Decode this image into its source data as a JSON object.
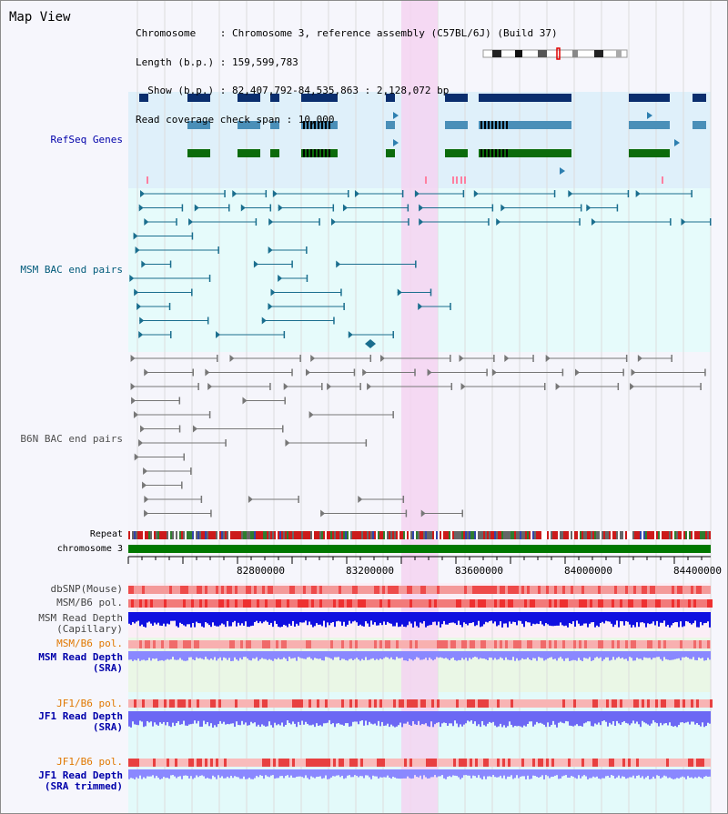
{
  "view": {
    "title": "Map View",
    "info": {
      "chromosome_line": "Chromosome    : Chromosome 3, reference assembly (C57BL/6J) (Build 37)",
      "length_line": "Length (b.p.) : 159,599,783",
      "show_line": "  Show (b.p.) : 82,407,792-84,535,863 : 2,128,072 bp",
      "span_line": "Read coverage check span : 10,000"
    }
  },
  "tracks": {
    "refseq": "RefSeq Genes",
    "msm_bac": "MSM BAC end pairs",
    "b6n_bac": "B6N BAC end pairs",
    "repeat": "Repeat",
    "chromosome": "chromosome 3",
    "dbsnp": "dbSNP(Mouse)",
    "msm_b6_pol": "MSM/B6 pol.",
    "msm_depth_cap_1": "MSM Read Depth",
    "msm_depth_cap_2": "(Capillary)",
    "msm_b6_pol_sra": "MSM/B6 pol.",
    "msm_depth_sra_1": "MSM Read Depth",
    "msm_depth_sra_2": "(SRA)",
    "jf1_b6_pol": "JF1/B6 pol.",
    "jf1_depth_sra_1": "JF1 Read Depth",
    "jf1_depth_sra_2": "(SRA)",
    "jf1_b6_pol_trim": "JF1/B6 pol.",
    "jf1_depth_trim_1": "JF1 Read Depth",
    "jf1_depth_trim_2": "(SRA trimmed)"
  },
  "axis": {
    "ticks": [
      "82800000",
      "83200000",
      "83600000",
      "84000000",
      "84400000"
    ]
  },
  "colors": {
    "refseq_bg": "#dff0fa",
    "msm_bg": "#e6fbfb",
    "b6n_bg": "#f5f5fb",
    "highlight": "#f4d4f1",
    "label_blue": "#0000aa",
    "label_msm": "#005a7a",
    "label_b6n": "#505050",
    "label_orange": "#e07800",
    "chromosome": "#007800"
  }
}
